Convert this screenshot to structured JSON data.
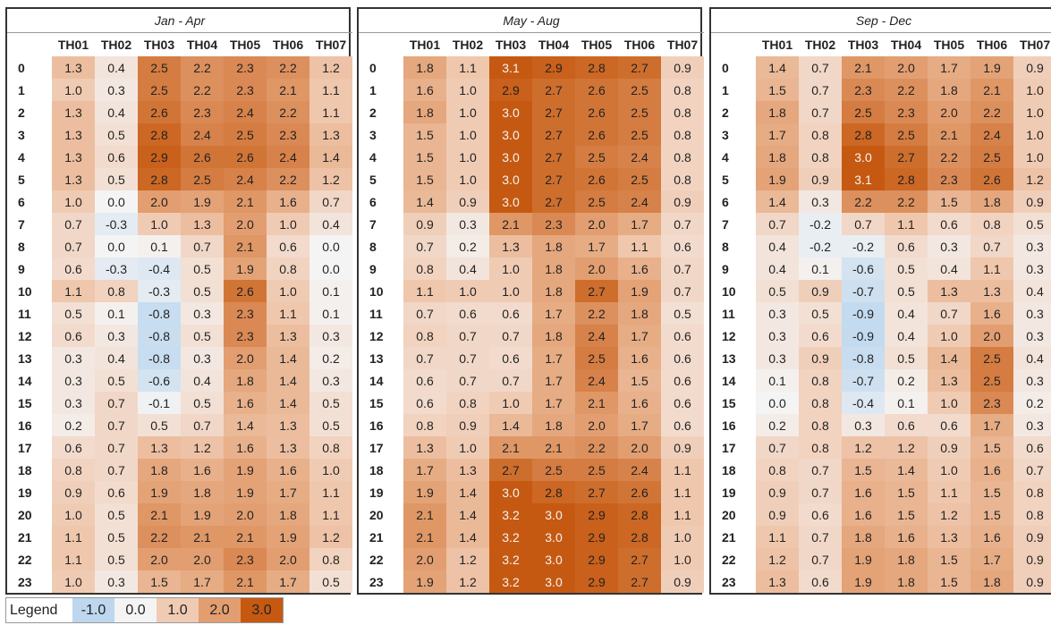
{
  "panels": [
    {
      "title": "Jan - Apr",
      "columns": [
        "TH01",
        "TH02",
        "TH03",
        "TH04",
        "TH05",
        "TH06",
        "TH07"
      ],
      "rows": [
        {
          "label": "0",
          "cells": [
            "1.3",
            "0.4",
            "2.5",
            "2.2",
            "2.3",
            "2.2",
            "1.2"
          ]
        },
        {
          "label": "1",
          "cells": [
            "1.0",
            "0.3",
            "2.5",
            "2.2",
            "2.3",
            "2.1",
            "1.1"
          ]
        },
        {
          "label": "2",
          "cells": [
            "1.3",
            "0.4",
            "2.6",
            "2.3",
            "2.4",
            "2.2",
            "1.1"
          ]
        },
        {
          "label": "3",
          "cells": [
            "1.3",
            "0.5",
            "2.8",
            "2.4",
            "2.5",
            "2.3",
            "1.3"
          ]
        },
        {
          "label": "4",
          "cells": [
            "1.3",
            "0.6",
            "2.9",
            "2.6",
            "2.6",
            "2.4",
            "1.4"
          ]
        },
        {
          "label": "5",
          "cells": [
            "1.3",
            "0.5",
            "2.8",
            "2.5",
            "2.4",
            "2.2",
            "1.2"
          ]
        },
        {
          "label": "6",
          "cells": [
            "1.0",
            "0.0",
            "2.0",
            "1.9",
            "2.1",
            "1.6",
            "0.7"
          ]
        },
        {
          "label": "7",
          "cells": [
            "0.7",
            "-0.3",
            "1.0",
            "1.3",
            "2.0",
            "1.0",
            "0.4"
          ]
        },
        {
          "label": "8",
          "cells": [
            "0.7",
            "0.0",
            "0.1",
            "0.7",
            "2.1",
            "0.6",
            "0.0"
          ]
        },
        {
          "label": "9",
          "cells": [
            "0.6",
            "-0.3",
            "-0.4",
            "0.5",
            "1.9",
            "0.8",
            "0.0"
          ]
        },
        {
          "label": "10",
          "cells": [
            "1.1",
            "0.8",
            "-0.3",
            "0.5",
            "2.6",
            "1.0",
            "0.1"
          ]
        },
        {
          "label": "11",
          "cells": [
            "0.5",
            "0.1",
            "-0.8",
            "0.3",
            "2.3",
            "1.1",
            "0.1"
          ]
        },
        {
          "label": "12",
          "cells": [
            "0.6",
            "0.3",
            "-0.8",
            "0.5",
            "2.3",
            "1.3",
            "0.3"
          ]
        },
        {
          "label": "13",
          "cells": [
            "0.3",
            "0.4",
            "-0.8",
            "0.3",
            "2.0",
            "1.4",
            "0.2"
          ]
        },
        {
          "label": "14",
          "cells": [
            "0.3",
            "0.5",
            "-0.6",
            "0.4",
            "1.8",
            "1.4",
            "0.3"
          ]
        },
        {
          "label": "15",
          "cells": [
            "0.3",
            "0.7",
            "-0.1",
            "0.5",
            "1.6",
            "1.4",
            "0.5"
          ]
        },
        {
          "label": "16",
          "cells": [
            "0.2",
            "0.7",
            "0.5",
            "0.7",
            "1.4",
            "1.3",
            "0.5"
          ]
        },
        {
          "label": "17",
          "cells": [
            "0.6",
            "0.7",
            "1.3",
            "1.2",
            "1.6",
            "1.3",
            "0.8"
          ]
        },
        {
          "label": "18",
          "cells": [
            "0.8",
            "0.7",
            "1.8",
            "1.6",
            "1.9",
            "1.6",
            "1.0"
          ]
        },
        {
          "label": "19",
          "cells": [
            "0.9",
            "0.6",
            "1.9",
            "1.8",
            "1.9",
            "1.7",
            "1.1"
          ]
        },
        {
          "label": "20",
          "cells": [
            "1.0",
            "0.5",
            "2.1",
            "1.9",
            "2.0",
            "1.8",
            "1.1"
          ]
        },
        {
          "label": "21",
          "cells": [
            "1.1",
            "0.5",
            "2.2",
            "2.1",
            "2.1",
            "1.9",
            "1.2"
          ]
        },
        {
          "label": "22",
          "cells": [
            "1.1",
            "0.5",
            "2.0",
            "2.0",
            "2.3",
            "2.0",
            "0.8"
          ]
        },
        {
          "label": "23",
          "cells": [
            "1.0",
            "0.3",
            "1.5",
            "1.7",
            "2.1",
            "1.7",
            "0.5"
          ]
        }
      ]
    },
    {
      "title": "May - Aug",
      "columns": [
        "TH01",
        "TH02",
        "TH03",
        "TH04",
        "TH05",
        "TH06",
        "TH07"
      ],
      "rows": [
        {
          "label": "0",
          "cells": [
            "1.8",
            "1.1",
            "3.1",
            "2.9",
            "2.8",
            "2.7",
            "0.9"
          ]
        },
        {
          "label": "1",
          "cells": [
            "1.6",
            "1.0",
            "2.9",
            "2.7",
            "2.6",
            "2.5",
            "0.8"
          ]
        },
        {
          "label": "2",
          "cells": [
            "1.8",
            "1.0",
            "3.0",
            "2.7",
            "2.6",
            "2.5",
            "0.8"
          ]
        },
        {
          "label": "3",
          "cells": [
            "1.5",
            "1.0",
            "3.0",
            "2.7",
            "2.6",
            "2.5",
            "0.8"
          ]
        },
        {
          "label": "4",
          "cells": [
            "1.5",
            "1.0",
            "3.0",
            "2.7",
            "2.5",
            "2.4",
            "0.8"
          ]
        },
        {
          "label": "5",
          "cells": [
            "1.5",
            "1.0",
            "3.0",
            "2.7",
            "2.6",
            "2.5",
            "0.8"
          ]
        },
        {
          "label": "6",
          "cells": [
            "1.4",
            "0.9",
            "3.0",
            "2.7",
            "2.5",
            "2.4",
            "0.9"
          ]
        },
        {
          "label": "7",
          "cells": [
            "0.9",
            "0.3",
            "2.1",
            "2.3",
            "2.0",
            "1.7",
            "0.7"
          ]
        },
        {
          "label": "8",
          "cells": [
            "0.7",
            "0.2",
            "1.3",
            "1.8",
            "1.7",
            "1.1",
            "0.6"
          ]
        },
        {
          "label": "9",
          "cells": [
            "0.8",
            "0.4",
            "1.0",
            "1.8",
            "2.0",
            "1.6",
            "0.7"
          ]
        },
        {
          "label": "10",
          "cells": [
            "1.1",
            "1.0",
            "1.0",
            "1.8",
            "2.7",
            "1.9",
            "0.7"
          ]
        },
        {
          "label": "11",
          "cells": [
            "0.7",
            "0.6",
            "0.6",
            "1.7",
            "2.2",
            "1.8",
            "0.5"
          ]
        },
        {
          "label": "12",
          "cells": [
            "0.8",
            "0.7",
            "0.7",
            "1.8",
            "2.4",
            "1.7",
            "0.6"
          ]
        },
        {
          "label": "13",
          "cells": [
            "0.7",
            "0.7",
            "0.6",
            "1.7",
            "2.5",
            "1.6",
            "0.6"
          ]
        },
        {
          "label": "14",
          "cells": [
            "0.6",
            "0.7",
            "0.7",
            "1.7",
            "2.4",
            "1.5",
            "0.6"
          ]
        },
        {
          "label": "15",
          "cells": [
            "0.6",
            "0.8",
            "1.0",
            "1.7",
            "2.1",
            "1.6",
            "0.6"
          ]
        },
        {
          "label": "16",
          "cells": [
            "0.8",
            "0.9",
            "1.4",
            "1.8",
            "2.0",
            "1.7",
            "0.6"
          ]
        },
        {
          "label": "17",
          "cells": [
            "1.3",
            "1.0",
            "2.1",
            "2.1",
            "2.2",
            "2.0",
            "0.9"
          ]
        },
        {
          "label": "18",
          "cells": [
            "1.7",
            "1.3",
            "2.7",
            "2.5",
            "2.5",
            "2.4",
            "1.1"
          ]
        },
        {
          "label": "19",
          "cells": [
            "1.9",
            "1.4",
            "3.0",
            "2.8",
            "2.7",
            "2.6",
            "1.1"
          ]
        },
        {
          "label": "20",
          "cells": [
            "2.1",
            "1.4",
            "3.2",
            "3.0",
            "2.9",
            "2.8",
            "1.1"
          ]
        },
        {
          "label": "21",
          "cells": [
            "2.1",
            "1.4",
            "3.2",
            "3.0",
            "2.9",
            "2.8",
            "1.0"
          ]
        },
        {
          "label": "22",
          "cells": [
            "2.0",
            "1.2",
            "3.2",
            "3.0",
            "2.9",
            "2.7",
            "1.0"
          ]
        },
        {
          "label": "23",
          "cells": [
            "1.9",
            "1.2",
            "3.2",
            "3.0",
            "2.9",
            "2.7",
            "0.9"
          ]
        }
      ]
    },
    {
      "title": "Sep - Dec",
      "columns": [
        "TH01",
        "TH02",
        "TH03",
        "TH04",
        "TH05",
        "TH06",
        "TH07"
      ],
      "rows": [
        {
          "label": "0",
          "cells": [
            "1.4",
            "0.7",
            "2.1",
            "2.0",
            "1.7",
            "1.9",
            "0.9"
          ]
        },
        {
          "label": "1",
          "cells": [
            "1.5",
            "0.7",
            "2.3",
            "2.2",
            "1.8",
            "2.1",
            "1.0"
          ]
        },
        {
          "label": "2",
          "cells": [
            "1.8",
            "0.7",
            "2.5",
            "2.3",
            "2.0",
            "2.2",
            "1.0"
          ]
        },
        {
          "label": "3",
          "cells": [
            "1.7",
            "0.8",
            "2.8",
            "2.5",
            "2.1",
            "2.4",
            "1.0"
          ]
        },
        {
          "label": "4",
          "cells": [
            "1.8",
            "0.8",
            "3.0",
            "2.7",
            "2.2",
            "2.5",
            "1.0"
          ]
        },
        {
          "label": "5",
          "cells": [
            "1.9",
            "0.9",
            "3.1",
            "2.8",
            "2.3",
            "2.6",
            "1.2"
          ]
        },
        {
          "label": "6",
          "cells": [
            "1.4",
            "0.3",
            "2.2",
            "2.2",
            "1.5",
            "1.8",
            "0.9"
          ]
        },
        {
          "label": "7",
          "cells": [
            "0.7",
            "-0.2",
            "0.7",
            "1.1",
            "0.6",
            "0.8",
            "0.5"
          ]
        },
        {
          "label": "8",
          "cells": [
            "0.4",
            "-0.2",
            "-0.2",
            "0.6",
            "0.3",
            "0.7",
            "0.3"
          ]
        },
        {
          "label": "9",
          "cells": [
            "0.4",
            "0.1",
            "-0.6",
            "0.5",
            "0.4",
            "1.1",
            "0.3"
          ]
        },
        {
          "label": "10",
          "cells": [
            "0.5",
            "0.9",
            "-0.7",
            "0.5",
            "1.3",
            "1.3",
            "0.4"
          ]
        },
        {
          "label": "11",
          "cells": [
            "0.3",
            "0.5",
            "-0.9",
            "0.4",
            "0.7",
            "1.6",
            "0.3"
          ]
        },
        {
          "label": "12",
          "cells": [
            "0.3",
            "0.6",
            "-0.9",
            "0.4",
            "1.0",
            "2.0",
            "0.3"
          ]
        },
        {
          "label": "13",
          "cells": [
            "0.3",
            "0.9",
            "-0.8",
            "0.5",
            "1.4",
            "2.5",
            "0.4"
          ]
        },
        {
          "label": "14",
          "cells": [
            "0.1",
            "0.8",
            "-0.7",
            "0.2",
            "1.3",
            "2.5",
            "0.3"
          ]
        },
        {
          "label": "15",
          "cells": [
            "0.0",
            "0.8",
            "-0.4",
            "0.1",
            "1.0",
            "2.3",
            "0.2"
          ]
        },
        {
          "label": "16",
          "cells": [
            "0.2",
            "0.8",
            "0.3",
            "0.6",
            "0.6",
            "1.7",
            "0.3"
          ]
        },
        {
          "label": "17",
          "cells": [
            "0.7",
            "0.8",
            "1.2",
            "1.2",
            "0.9",
            "1.5",
            "0.6"
          ]
        },
        {
          "label": "18",
          "cells": [
            "0.8",
            "0.7",
            "1.5",
            "1.4",
            "1.0",
            "1.6",
            "0.7"
          ]
        },
        {
          "label": "19",
          "cells": [
            "0.9",
            "0.7",
            "1.6",
            "1.5",
            "1.1",
            "1.5",
            "0.8"
          ]
        },
        {
          "label": "20",
          "cells": [
            "0.9",
            "0.6",
            "1.6",
            "1.5",
            "1.2",
            "1.5",
            "0.8"
          ]
        },
        {
          "label": "21",
          "cells": [
            "1.1",
            "0.7",
            "1.8",
            "1.6",
            "1.3",
            "1.6",
            "0.9"
          ]
        },
        {
          "label": "22",
          "cells": [
            "1.2",
            "0.7",
            "1.9",
            "1.8",
            "1.5",
            "1.7",
            "0.9"
          ]
        },
        {
          "label": "23",
          "cells": [
            "1.3",
            "0.6",
            "1.9",
            "1.8",
            "1.5",
            "1.8",
            "0.9"
          ]
        }
      ]
    }
  ],
  "legend": {
    "label": "Legend",
    "stops": [
      "-1.0",
      "0.0",
      "1.0",
      "2.0",
      "3.0"
    ]
  }
}
